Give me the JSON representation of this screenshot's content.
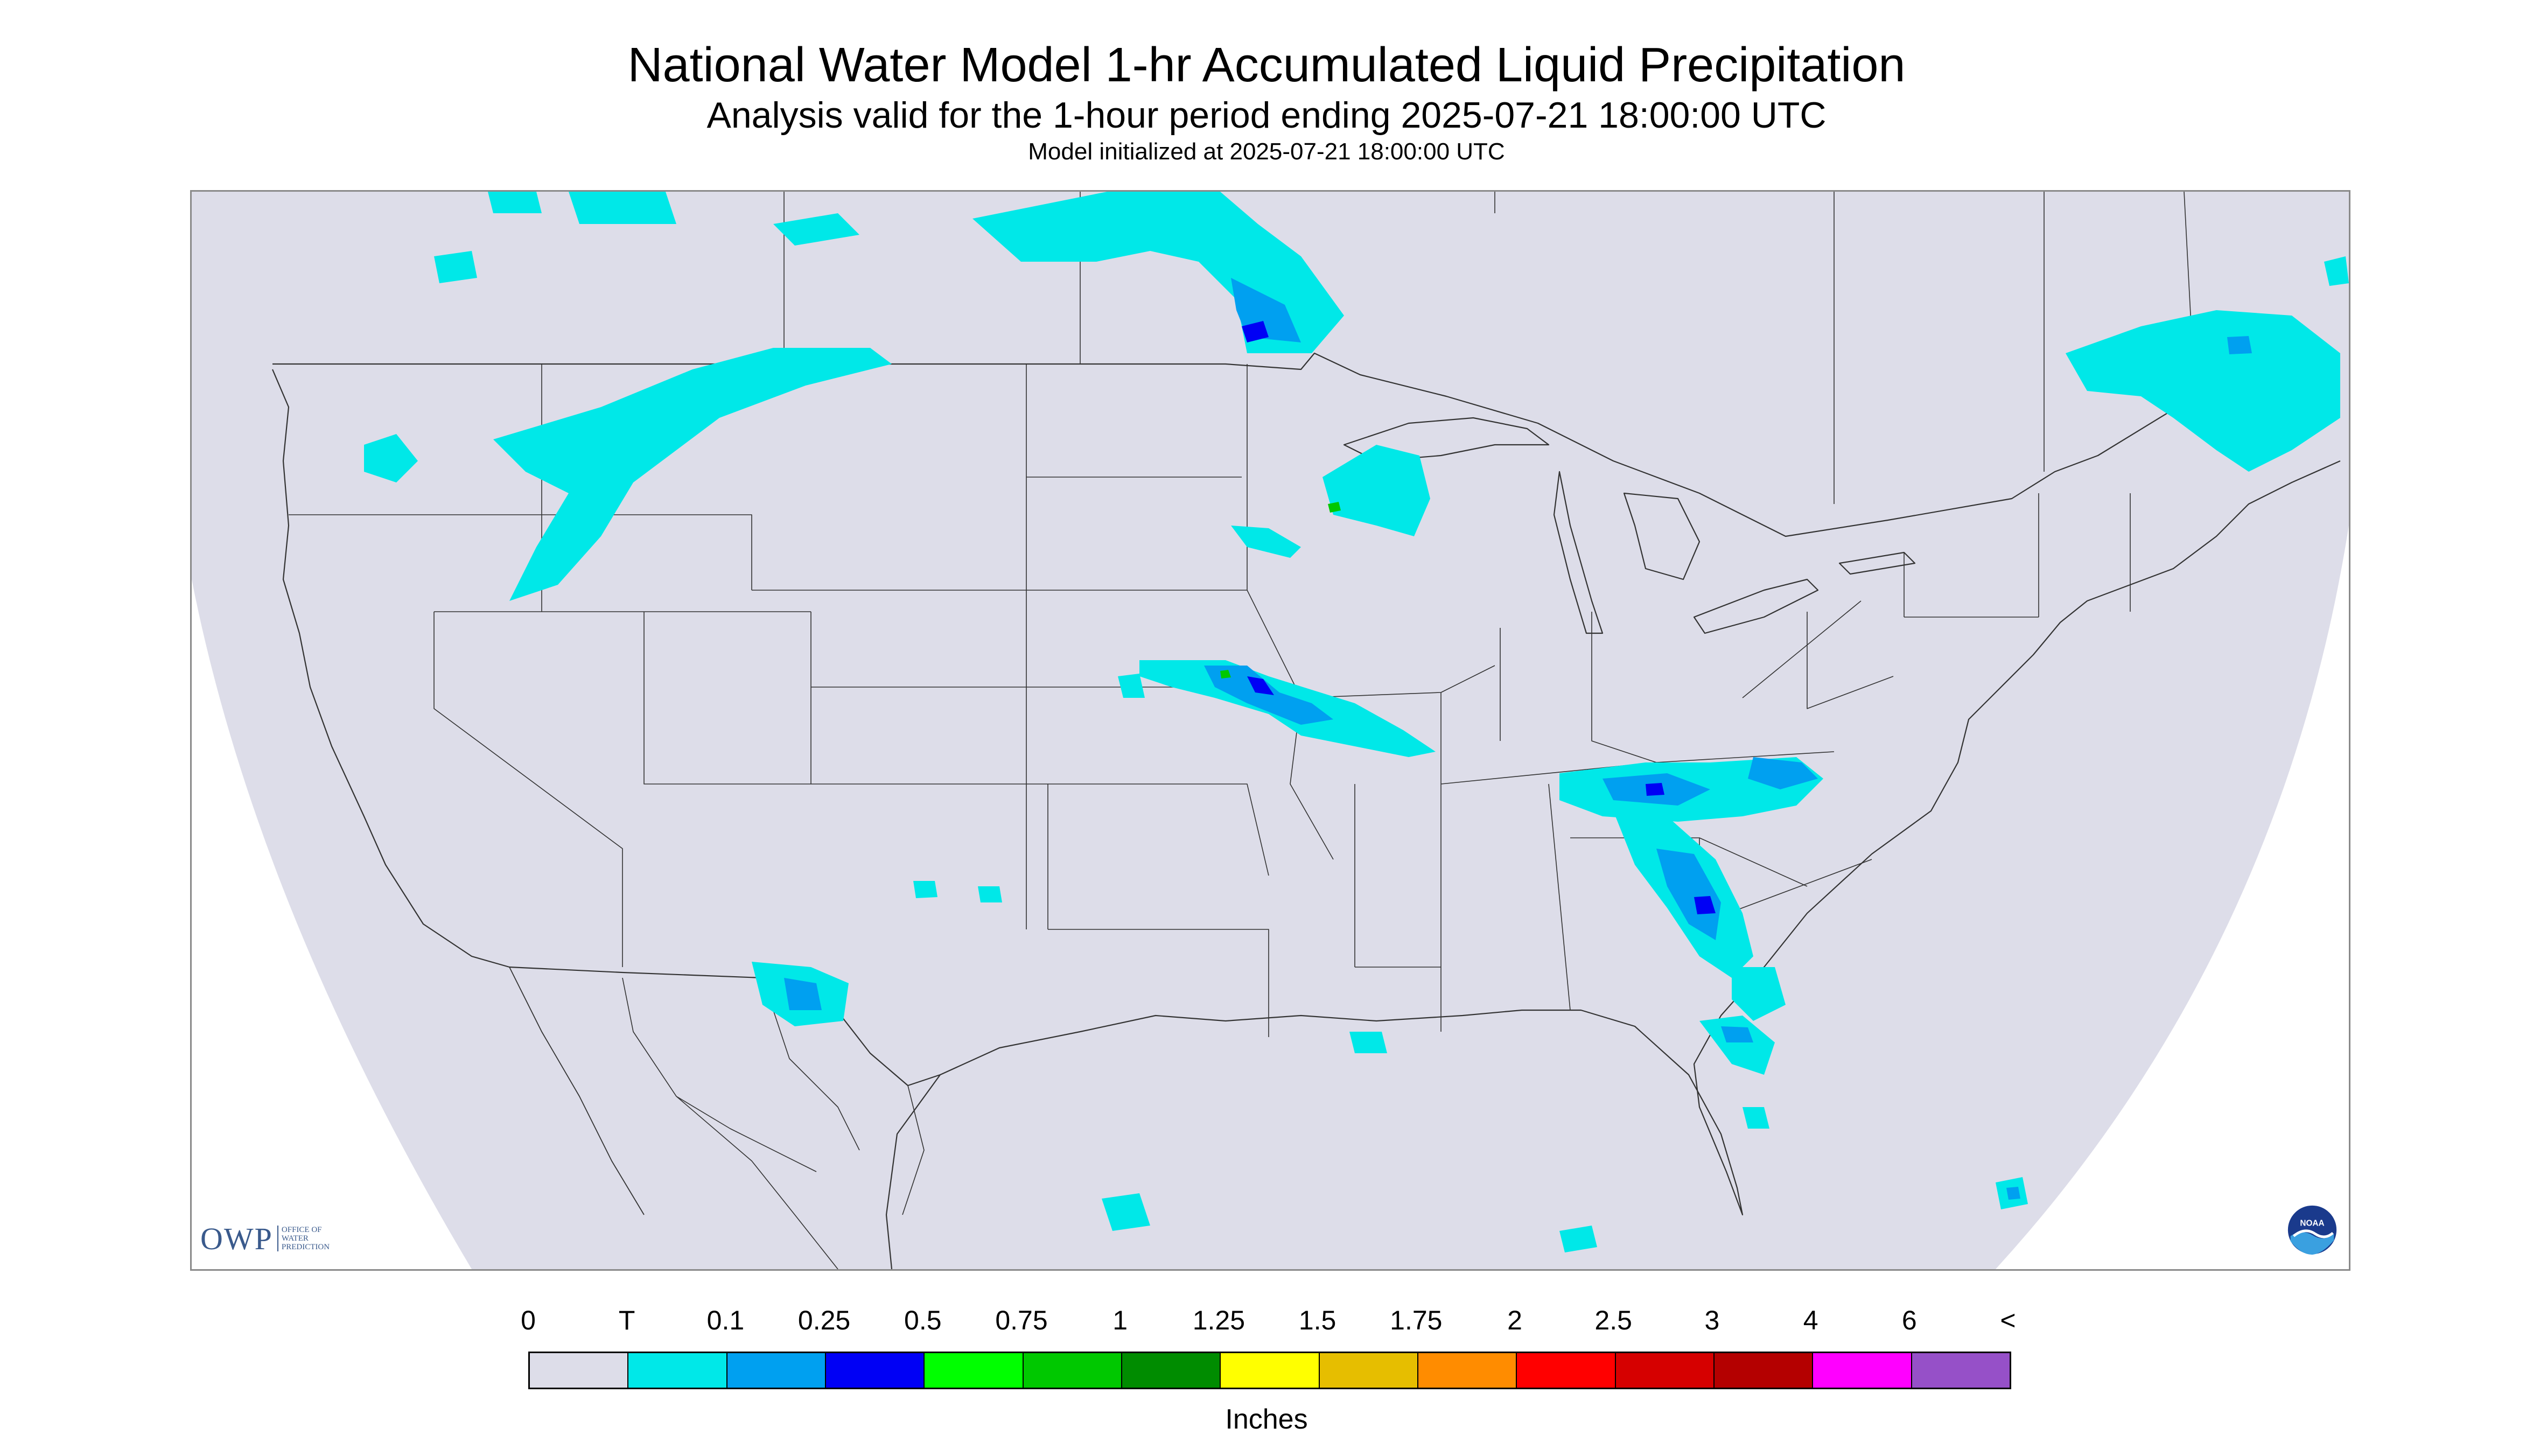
{
  "titles": {
    "main": "National Water Model 1-hr Accumulated Liquid Precipitation",
    "sub": "Analysis valid for the 1-hour period ending 2025-07-21 18:00:00 UTC",
    "init": "Model initialized at 2025-07-21 18:00:00 UTC"
  },
  "colors": {
    "domain_fill": "#dddde9",
    "outside_domain": "#ffffff",
    "boundary_line": "#333333"
  },
  "logos": {
    "owp_text": "OWP",
    "owp_sub": "OFFICE OF WATER PREDICTION",
    "noaa_text": "NOAA"
  },
  "legend": {
    "tick_labels": [
      "0",
      "T",
      "0.1",
      "0.25",
      "0.5",
      "0.75",
      "1",
      "1.25",
      "1.5",
      "1.75",
      "2",
      "2.5",
      "3",
      "4",
      "6",
      "<"
    ],
    "colors": [
      "#dddde9",
      "#00e8e8",
      "#00a0f0",
      "#0000f5",
      "#00ff00",
      "#00c800",
      "#008c00",
      "#ffff00",
      "#e6be00",
      "#ff8c00",
      "#ff0000",
      "#d60000",
      "#b40000",
      "#ff00ff",
      "#9650c8"
    ],
    "units": "Inches"
  },
  "precip_regions": [
    {
      "area": "Pacific Northwest / Idaho / Montana band",
      "level": "T-0.1",
      "color": "#00e8e8"
    },
    {
      "area": "Northern Minnesota / Ontario",
      "level": "T-0.25",
      "color": "#00e8e8"
    },
    {
      "area": "Wisconsin",
      "level": "T-0.1",
      "color": "#00e8e8"
    },
    {
      "area": "Kansas / Missouri band",
      "level": "T-0.5",
      "color": "#00a0f0"
    },
    {
      "area": "Tennessee / Kentucky / Virginia",
      "level": "T-0.5",
      "color": "#00a0f0"
    },
    {
      "area": "Georgia / Alabama / Carolinas",
      "level": "T-0.5",
      "color": "#00a0f0"
    },
    {
      "area": "Florida",
      "level": "T-0.25",
      "color": "#00e8e8"
    },
    {
      "area": "Arizona / New Mexico",
      "level": "T-0.25",
      "color": "#00e8e8"
    },
    {
      "area": "Quebec / New England",
      "level": "T-0.1",
      "color": "#00e8e8"
    }
  ]
}
